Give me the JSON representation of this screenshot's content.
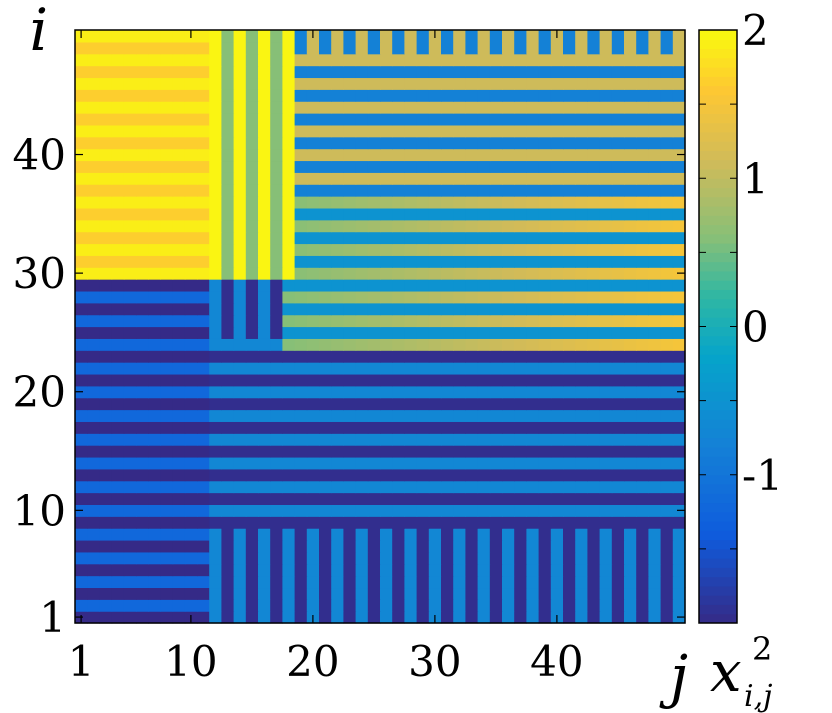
{
  "chart_data": {
    "type": "heatmap",
    "title": "",
    "xlabel": "j",
    "ylabel": "i",
    "colorbar_label": "x",
    "colorbar_label_sup": "2",
    "colorbar_label_sub": "i,j",
    "xlim": [
      1,
      50
    ],
    "ylim": [
      1,
      50
    ],
    "x_ticks": [
      {
        "value": 1,
        "label": "1"
      },
      {
        "value": 10,
        "label": "10"
      },
      {
        "value": 20,
        "label": "20"
      },
      {
        "value": 30,
        "label": "30"
      },
      {
        "value": 40,
        "label": "40"
      }
    ],
    "y_ticks": [
      {
        "value": 1,
        "label": "1"
      },
      {
        "value": 10,
        "label": "10"
      },
      {
        "value": 20,
        "label": "20"
      },
      {
        "value": 30,
        "label": "30"
      },
      {
        "value": 40,
        "label": "40"
      }
    ],
    "colorbar": {
      "range": [
        -2,
        2
      ],
      "colormap": "parula",
      "ticks": [
        {
          "value": 2,
          "label": "2"
        },
        {
          "value": 1,
          "label": "1"
        },
        {
          "value": 0,
          "label": "0"
        },
        {
          "value": -1,
          "label": "-1"
        }
      ]
    },
    "grid_size": [
      50,
      50
    ],
    "regions": [
      {
        "name": "upper-left",
        "i_range": [
          30,
          50
        ],
        "j_range": [
          1,
          11
        ],
        "value_high": 1.9,
        "value_low": 1.65,
        "stripes": "horizontal",
        "stripe_period": 2
      },
      {
        "name": "upper-mid",
        "i_range": [
          30,
          50
        ],
        "j_range": [
          11,
          18
        ],
        "value_high": 1.95,
        "value_low": 0.6,
        "stripes": "vertical",
        "stripe_period": 2
      },
      {
        "name": "top-right",
        "i_range": [
          37,
          50
        ],
        "j_range": [
          18,
          50
        ],
        "value_high": 1.1,
        "value_low": -0.8,
        "stripes": "mixed",
        "stripe_period": 2
      },
      {
        "name": "mid-right",
        "i_range": [
          24,
          37
        ],
        "j_range": [
          18,
          50
        ],
        "value_high": 1.5,
        "value_low": -0.5,
        "stripes": "horizontal",
        "stripe_period": 2
      },
      {
        "name": "lower-left",
        "i_range": [
          1,
          30
        ],
        "j_range": [
          1,
          11
        ],
        "value_high": -1.2,
        "value_low": -2.0,
        "stripes": "horizontal",
        "stripe_period": 2
      },
      {
        "name": "lower-mid",
        "i_range": [
          1,
          30
        ],
        "j_range": [
          11,
          50
        ],
        "value_high": -0.7,
        "value_low": -1.95,
        "stripes": "mixed",
        "stripe_period": 2
      }
    ]
  }
}
